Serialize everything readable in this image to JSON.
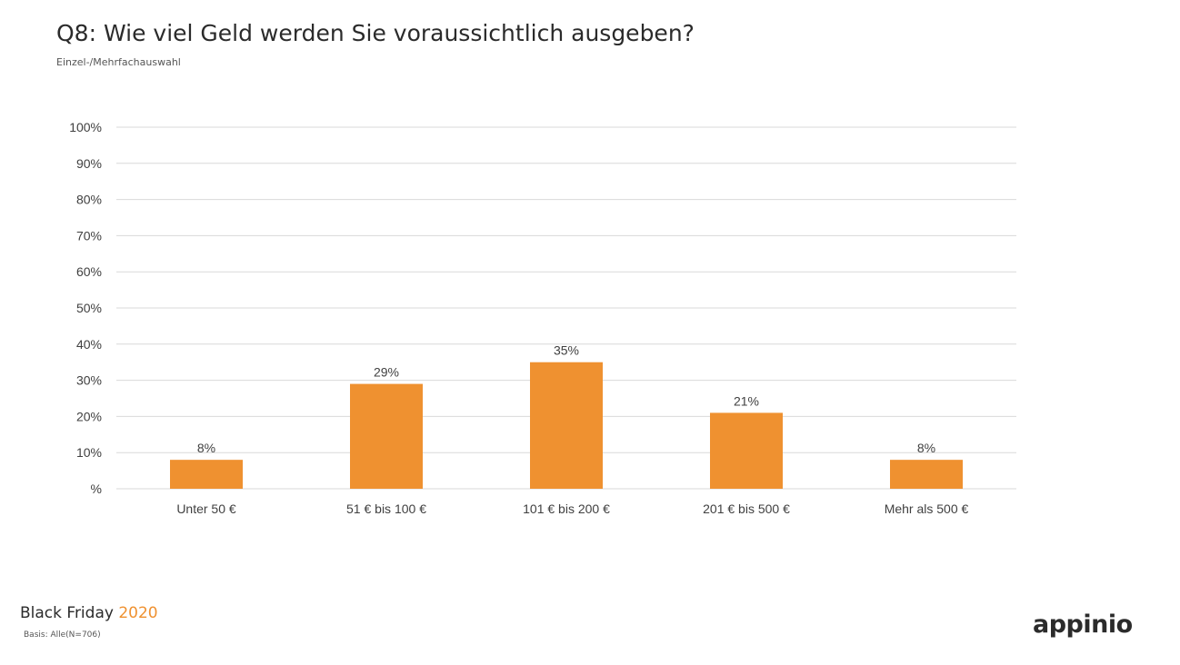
{
  "header": {
    "title": "Q8: Wie viel Geld werden Sie voraussichtlich ausgeben?",
    "subtitle": "Einzel-/Mehrfachauswahl"
  },
  "footer": {
    "brand": "Black Friday",
    "year": "2020",
    "basis": "Basis: Alle(N=706)",
    "logo": "appinio"
  },
  "colors": {
    "bar": "#ef9130",
    "grid": "#d9d9d9",
    "accent": "#ef9130"
  },
  "chart_data": {
    "type": "bar",
    "categories": [
      "Unter 50 €",
      "51 € bis 100 €",
      "101 € bis 200 €",
      "201 € bis 500 €",
      "Mehr als 500 €"
    ],
    "values": [
      8,
      29,
      35,
      21,
      8
    ],
    "data_labels": [
      "8%",
      "29%",
      "35%",
      "21%",
      "8%"
    ],
    "yticks": [
      "%",
      "10%",
      "20%",
      "30%",
      "40%",
      "50%",
      "60%",
      "70%",
      "80%",
      "90%",
      "100%"
    ],
    "ylim": [
      0,
      100
    ],
    "grid": true
  }
}
